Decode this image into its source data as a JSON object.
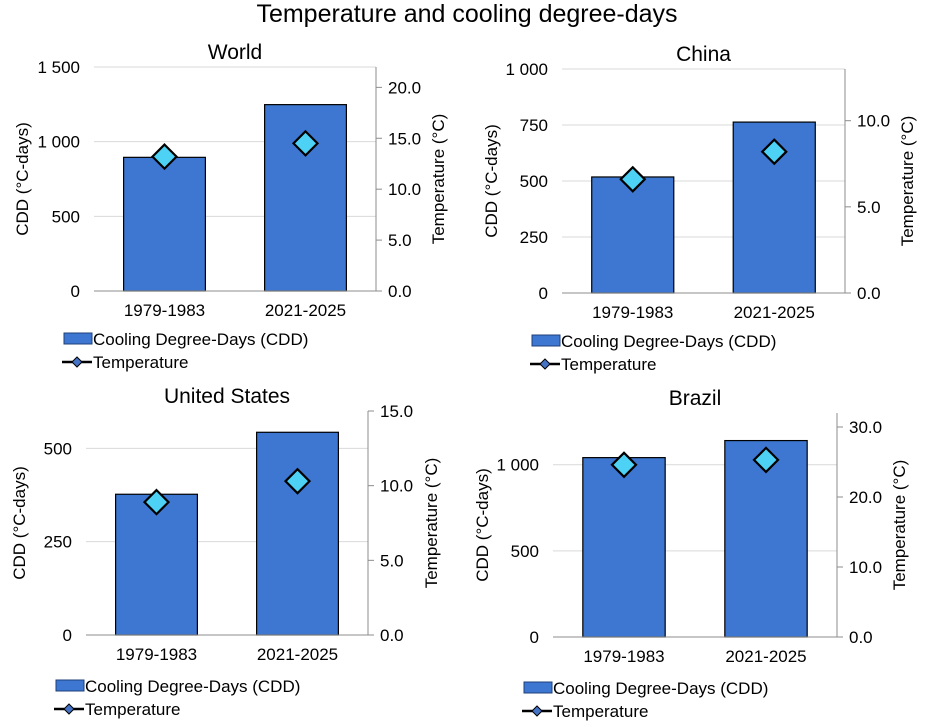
{
  "title": "Temperature and cooling degree-days",
  "colors": {
    "bar": "#3E77D1",
    "bar_stroke": "#000000",
    "marker": "#4DD2F5",
    "marker_stroke": "#000000",
    "legend_marker": "#4472C4",
    "grid": "#D9D9D9",
    "axis": "#8C8C8C"
  },
  "legend": {
    "bar_label": "Cooling Degree-Days (CDD)",
    "line_label": "Temperature"
  },
  "chart_data": [
    {
      "type": "bar",
      "title": "World",
      "categories": [
        "1979-1983",
        "2021-2025"
      ],
      "series": [
        {
          "name": "Cooling Degree-Days (CDD)",
          "axis": "left",
          "kind": "bar",
          "values": [
            895,
            1248
          ]
        },
        {
          "name": "Temperature",
          "axis": "right",
          "kind": "marker",
          "values": [
            13.2,
            14.5
          ]
        }
      ],
      "ylabel": "CDD (°C-days)",
      "y2label": "Temperature (°C)",
      "ylim": [
        0,
        1500
      ],
      "yticks": [
        0,
        500,
        1000,
        1500
      ],
      "ytick_labels": [
        "0",
        "500",
        "1 000",
        "1 500"
      ],
      "y2lim": [
        0,
        22
      ],
      "y2ticks": [
        0,
        5,
        10,
        15,
        20
      ],
      "y2tick_labels": [
        "0.0",
        "5.0",
        "10.0",
        "15.0",
        "20.0"
      ],
      "grid": true,
      "legend": "bottom-left"
    },
    {
      "type": "bar",
      "title": "China",
      "categories": [
        "1979-1983",
        "2021-2025"
      ],
      "series": [
        {
          "name": "Cooling Degree-Days (CDD)",
          "axis": "left",
          "kind": "bar",
          "values": [
            518,
            763
          ]
        },
        {
          "name": "Temperature",
          "axis": "right",
          "kind": "marker",
          "values": [
            6.6,
            8.2
          ]
        }
      ],
      "ylabel": "CDD (°C-days)",
      "y2label": "Temperature (°C)",
      "ylim": [
        0,
        1000
      ],
      "yticks": [
        0,
        250,
        500,
        750,
        1000
      ],
      "ytick_labels": [
        "0",
        "250",
        "500",
        "750",
        "1 000"
      ],
      "y2lim": [
        0,
        13
      ],
      "y2ticks": [
        0,
        5,
        10
      ],
      "y2tick_labels": [
        "0.0",
        "5.0",
        "10.0"
      ],
      "grid": true,
      "legend": "bottom-left"
    },
    {
      "type": "bar",
      "title": "United States",
      "categories": [
        "1979-1983",
        "2021-2025"
      ],
      "series": [
        {
          "name": "Cooling Degree-Days (CDD)",
          "axis": "left",
          "kind": "bar",
          "values": [
            377,
            543
          ]
        },
        {
          "name": "Temperature",
          "axis": "right",
          "kind": "marker",
          "values": [
            8.9,
            10.3
          ]
        }
      ],
      "ylabel": "CDD (°C-days)",
      "y2label": "Temperature (°C)",
      "ylim": [
        0,
        600
      ],
      "yticks": [
        0,
        250,
        500
      ],
      "ytick_labels": [
        "0",
        "250",
        "500"
      ],
      "y2lim": [
        0,
        15
      ],
      "y2ticks": [
        0,
        5,
        10,
        15
      ],
      "y2tick_labels": [
        "0.0",
        "5.0",
        "10.0",
        "15.0"
      ],
      "grid": true,
      "legend": "bottom-left"
    },
    {
      "type": "bar",
      "title": "Brazil",
      "categories": [
        "1979-1983",
        "2021-2025"
      ],
      "series": [
        {
          "name": "Cooling Degree-Days (CDD)",
          "axis": "left",
          "kind": "bar",
          "values": [
            1041,
            1140
          ]
        },
        {
          "name": "Temperature",
          "axis": "right",
          "kind": "marker",
          "values": [
            24.6,
            25.3
          ]
        }
      ],
      "ylabel": "CDD (°C-days)",
      "y2label": "Temperature (°C)",
      "ylim": [
        0,
        1300
      ],
      "yticks": [
        0,
        500,
        1000
      ],
      "ytick_labels": [
        "0",
        "500",
        "1 000"
      ],
      "y2lim": [
        0,
        32
      ],
      "y2ticks": [
        0,
        10,
        20,
        30
      ],
      "y2tick_labels": [
        "0.0",
        "10.0",
        "20.0",
        "30.0"
      ],
      "grid": true,
      "legend": "bottom-left"
    }
  ]
}
